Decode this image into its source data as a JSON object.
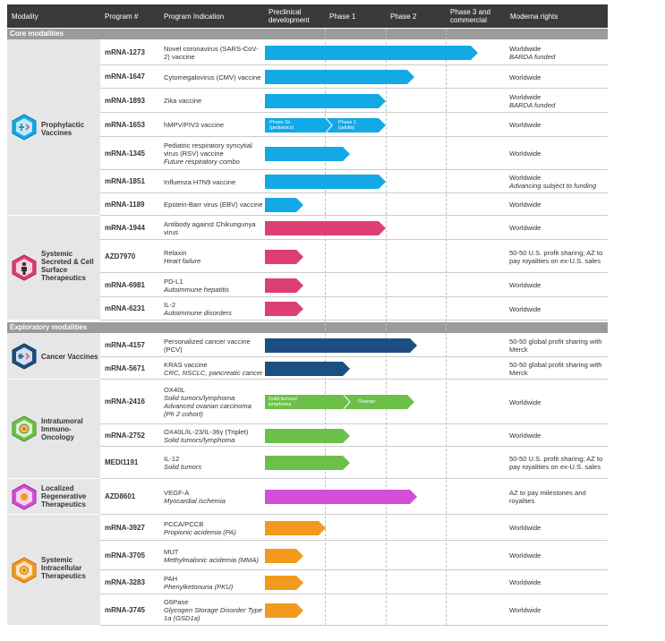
{
  "colors": {
    "header_bg": "#3a3a3a",
    "section_bg": "#9b9b9b",
    "modality_bg": "#e6e6e6",
    "prophylactic_vaccines": "#12a9e6",
    "systemic_secreted": "#dd3f73",
    "cancer_vaccines": "#1b4f82",
    "intratumoral": "#6cc04a",
    "localized_regenerative": "#d44fd6",
    "systemic_intracellular": "#f39a1e"
  },
  "header": {
    "modality": "Modality",
    "program": "Program #",
    "indication": "Program Indication",
    "preclinical": "Preclinical development",
    "phase1": "Phase 1",
    "phase2": "Phase 2",
    "phase3": "Phase 3 and commercial",
    "rights": "Moderna rights"
  },
  "sections": {
    "core": "Core modalities",
    "exploratory": "Exploratory modalities"
  },
  "modalities": {
    "prophylactic": {
      "label": "Prophylactic\nVaccines",
      "icon": "vaccine-icon"
    },
    "secreted": {
      "label": "Systemic\nSecreted & Cell\nSurface\nTherapeutics",
      "icon": "person-cell-icon"
    },
    "cancer": {
      "label": "Cancer Vaccines",
      "icon": "cancer-vaccine-icon"
    },
    "intratumoral": {
      "label": "Intratumoral\nImmuno-\nOncology",
      "icon": "tumor-icon"
    },
    "localized": {
      "label": "Localized\nRegenerative\nTherapeutics",
      "icon": "regenerative-cell-icon"
    },
    "intracellular": {
      "label": "Systemic\nIntracellular\nTherapeutics",
      "icon": "intracellular-cell-icon"
    }
  },
  "programs": [
    {
      "id": "mRNA-1273",
      "indication": "Novel coronavirus (SARS-CoV-2) vaccine",
      "indication_sub": "",
      "rights": "Worldwide",
      "rights_sub": "BARDA funded",
      "modality": "prophylactic",
      "stage": "Phase 3 and commercial",
      "stage_progress": 0.88
    },
    {
      "id": "mRNA-1647",
      "indication": "Cytomegalovirus (CMV) vaccine",
      "indication_sub": "",
      "rights": "Worldwide",
      "rights_sub": "",
      "modality": "prophylactic",
      "stage": "Phase 2",
      "stage_progress": 0.62
    },
    {
      "id": "mRNA-1893",
      "indication": "Zika vaccine",
      "indication_sub": "",
      "rights": "Worldwide",
      "rights_sub": "BARDA funded",
      "modality": "prophylactic",
      "stage": "Phase 1",
      "stage_progress": 0.5
    },
    {
      "id": "mRNA-1653",
      "indication": "hMPV/PIV3 vaccine",
      "indication_sub": "",
      "rights": "Worldwide",
      "rights_sub": "",
      "modality": "prophylactic",
      "stage": "Phase 1",
      "stage_progress": 0.5,
      "bar_labels": [
        "Phase 1b\n(pediatrics)",
        "Phase 1\n(adults)"
      ]
    },
    {
      "id": "mRNA-1345",
      "indication": "Pediatric respiratory syncytial virus (RSV) vaccine",
      "indication_sub": "Future respiratory combo",
      "rights": "Worldwide",
      "rights_sub": "",
      "modality": "prophylactic",
      "stage": "Phase 1",
      "stage_progress": 0.35
    },
    {
      "id": "mRNA-1851",
      "indication": "Influenza H7N9 vaccine",
      "indication_sub": "",
      "rights": "Worldwide",
      "rights_sub": "Advancing subject to funding",
      "modality": "prophylactic",
      "stage": "Phase 1",
      "stage_progress": 0.5
    },
    {
      "id": "mRNA-1189",
      "indication": "Epstein-Barr virus (EBV) vaccine",
      "indication_sub": "",
      "rights": "Worldwide",
      "rights_sub": "",
      "modality": "prophylactic",
      "stage": "Preclinical development",
      "stage_progress": 0.16
    },
    {
      "id": "mRNA-1944",
      "indication": "Antibody against Chikungunya virus",
      "indication_sub": "",
      "rights": "Worldwide",
      "rights_sub": "",
      "modality": "secreted",
      "stage": "Phase 1",
      "stage_progress": 0.5
    },
    {
      "id": "AZD7970",
      "indication": "Relaxin",
      "indication_sub": "Heart failure",
      "rights": "50-50 U.S. profit sharing; AZ to pay royalities on ex-U.S. sales",
      "rights_sub": "",
      "modality": "secreted",
      "stage": "Preclinical development",
      "stage_progress": 0.16
    },
    {
      "id": "mRNA-6981",
      "indication": "PD-L1",
      "indication_sub": "Autoimmune hepatitis",
      "rights": "Worldwide",
      "rights_sub": "",
      "modality": "secreted",
      "stage": "Preclinical development",
      "stage_progress": 0.16
    },
    {
      "id": "mRNA-6231",
      "indication": "IL-2",
      "indication_sub": "Autoimmune disorders",
      "rights": "Worldwide",
      "rights_sub": "",
      "modality": "secreted",
      "stage": "Preclinical development",
      "stage_progress": 0.16
    },
    {
      "id": "mRNA-4157",
      "indication": "Personalized cancer vaccine (PCV)",
      "indication_sub": "",
      "rights": "50-50 global profit sharing with Merck",
      "rights_sub": "",
      "modality": "cancer",
      "stage": "Phase 2",
      "stage_progress": 0.63
    },
    {
      "id": "mRNA-5671",
      "indication": "KRAS vaccine",
      "indication_sub": "CRC, NSCLC, pancreatic cancer",
      "rights": "50-50 global profit sharing with Merck",
      "rights_sub": "",
      "modality": "cancer",
      "stage": "Phase 1",
      "stage_progress": 0.35
    },
    {
      "id": "mRNA-2416",
      "indication": "OX40L",
      "indication_sub": "Solid tumors/lymphoma\nAdvanced ovarian carcinoma\n(Ph 2 cohort)",
      "rights": "Worldwide",
      "rights_sub": "",
      "modality": "intratumoral",
      "stage": "Phase 2",
      "stage_progress": 0.62,
      "bar_labels": [
        "Solid tumors/\nlymphoma",
        "Ovarian"
      ]
    },
    {
      "id": "mRNA-2752",
      "indication": "OX40L/IL-23/IL-36γ (Triplet)",
      "indication_sub": "Solid tumors/lymphoma",
      "rights": "Worldwide",
      "rights_sub": "",
      "modality": "intratumoral",
      "stage": "Phase 1",
      "stage_progress": 0.35
    },
    {
      "id": "MEDI1191",
      "indication": "IL-12",
      "indication_sub": "Solid tumors",
      "rights": "50-50 U.S. profit sharing; AZ to pay royalities on ex-U.S. sales",
      "rights_sub": "",
      "modality": "intratumoral",
      "stage": "Phase 1",
      "stage_progress": 0.35
    },
    {
      "id": "AZD8601",
      "indication": "VEGF-A",
      "indication_sub": "Myocardial ischemia",
      "rights": "AZ to pay milestones and royalties",
      "rights_sub": "",
      "modality": "localized",
      "stage": "Phase 2",
      "stage_progress": 0.63
    },
    {
      "id": "mRNA-3927",
      "indication": "PCCA/PCCB",
      "indication_sub": "Propionic acidemia (PA)",
      "rights": "Worldwide",
      "rights_sub": "",
      "modality": "intracellular",
      "stage": "Phase 1",
      "stage_progress": 0.25
    },
    {
      "id": "mRNA-3705",
      "indication": "MUT",
      "indication_sub": "Methylmalonic acidemia (MMA)",
      "rights": "Worldwide",
      "rights_sub": "",
      "modality": "intracellular",
      "stage": "Preclinical development",
      "stage_progress": 0.16
    },
    {
      "id": "mRNA-3283",
      "indication": "PAH",
      "indication_sub": "Phenylketonuria (PKU)",
      "rights": "Worldwide",
      "rights_sub": "",
      "modality": "intracellular",
      "stage": "Preclinical development",
      "stage_progress": 0.16
    },
    {
      "id": "mRNA-3745",
      "indication": "G6Pase",
      "indication_sub": "Glycogen Storage Disorder Type 1a (GSD1a)",
      "rights": "Worldwide",
      "rights_sub": "",
      "modality": "intracellular",
      "stage": "Preclinical development",
      "stage_progress": 0.16
    }
  ]
}
